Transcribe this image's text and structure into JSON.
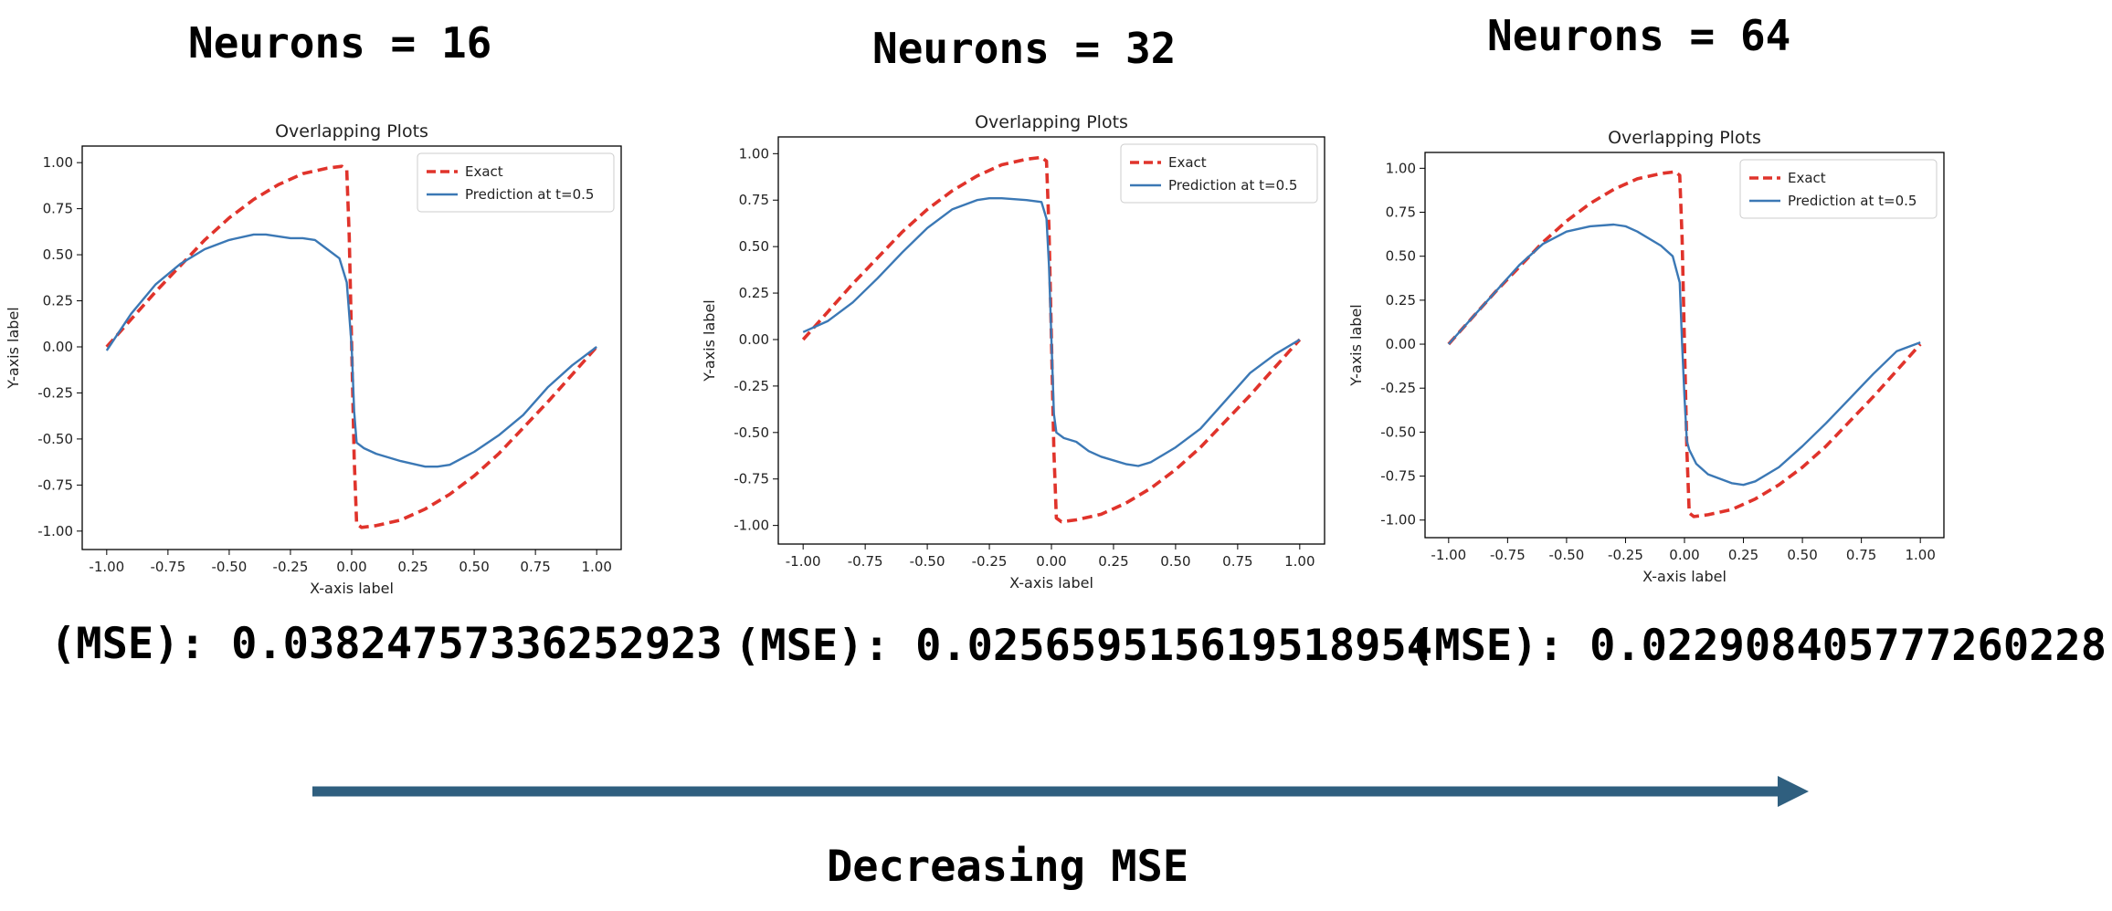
{
  "panels": [
    {
      "heading": "Neurons = 16",
      "mse_text": "(MSE): 0.0382475733625292​3",
      "chart_data": {
        "type": "line",
        "title": "Overlapping Plots",
        "xlabel": "X-axis label",
        "ylabel": "Y-axis label",
        "xlim": [
          -1.1,
          1.1
        ],
        "ylim": [
          -1.1,
          1.09
        ],
        "x_ticks": [
          "-1.00",
          "-0.75",
          "-0.50",
          "-0.25",
          "0.00",
          "0.25",
          "0.50",
          "0.75",
          "1.00"
        ],
        "y_ticks": [
          "1.00",
          "0.75",
          "0.50",
          "0.25",
          "0.00",
          "-0.25",
          "-0.50",
          "-0.75",
          "-1.00"
        ],
        "legend": "top-right",
        "grid": false,
        "series": [
          {
            "name": "Exact",
            "color": "#e0332b",
            "style": "dashed",
            "x": [
              -1.0,
              -0.9,
              -0.8,
              -0.7,
              -0.6,
              -0.5,
              -0.4,
              -0.3,
              -0.2,
              -0.1,
              -0.04,
              -0.02,
              -0.01,
              0.0,
              0.01,
              0.02,
              0.04,
              0.1,
              0.2,
              0.3,
              0.4,
              0.5,
              0.6,
              0.7,
              0.8,
              0.9,
              1.0
            ],
            "y": [
              0.0,
              0.15,
              0.3,
              0.44,
              0.58,
              0.7,
              0.8,
              0.88,
              0.94,
              0.97,
              0.98,
              0.96,
              0.6,
              0.0,
              -0.6,
              -0.96,
              -0.98,
              -0.97,
              -0.94,
              -0.88,
              -0.8,
              -0.7,
              -0.58,
              -0.44,
              -0.3,
              -0.15,
              0.0
            ]
          },
          {
            "name": "Prediction at t=0.5",
            "color": "#3b78b5",
            "style": "solid",
            "x": [
              -1.0,
              -0.9,
              -0.8,
              -0.7,
              -0.6,
              -0.5,
              -0.4,
              -0.35,
              -0.3,
              -0.25,
              -0.2,
              -0.15,
              -0.1,
              -0.05,
              -0.02,
              0.0,
              0.01,
              0.02,
              0.05,
              0.1,
              0.2,
              0.3,
              0.35,
              0.4,
              0.5,
              0.6,
              0.7,
              0.8,
              0.9,
              1.0
            ],
            "y": [
              -0.02,
              0.18,
              0.34,
              0.45,
              0.53,
              0.58,
              0.61,
              0.61,
              0.6,
              0.59,
              0.59,
              0.58,
              0.53,
              0.48,
              0.35,
              0.0,
              -0.35,
              -0.52,
              -0.55,
              -0.58,
              -0.62,
              -0.65,
              -0.65,
              -0.64,
              -0.57,
              -0.48,
              -0.37,
              -0.22,
              -0.1,
              0.0
            ]
          }
        ]
      }
    },
    {
      "heading": "Neurons = 32",
      "mse_text": "(MSE): 0.025659515619518954",
      "chart_data": {
        "type": "line",
        "title": "Overlapping Plots",
        "xlabel": "X-axis label",
        "ylabel": "Y-axis label",
        "xlim": [
          -1.1,
          1.1
        ],
        "ylim": [
          -1.1,
          1.09
        ],
        "x_ticks": [
          "-1.00",
          "-0.75",
          "-0.50",
          "-0.25",
          "0.00",
          "0.25",
          "0.50",
          "0.75",
          "1.00"
        ],
        "y_ticks": [
          "1.00",
          "0.75",
          "0.50",
          "0.25",
          "0.00",
          "-0.25",
          "-0.50",
          "-0.75",
          "-1.00"
        ],
        "legend": "top-right",
        "grid": false,
        "series": [
          {
            "name": "Exact",
            "color": "#e0332b",
            "style": "dashed",
            "x": [
              -1.0,
              -0.9,
              -0.8,
              -0.7,
              -0.6,
              -0.5,
              -0.4,
              -0.3,
              -0.2,
              -0.1,
              -0.04,
              -0.02,
              -0.01,
              0.0,
              0.01,
              0.02,
              0.04,
              0.1,
              0.2,
              0.3,
              0.4,
              0.5,
              0.6,
              0.7,
              0.8,
              0.9,
              1.0
            ],
            "y": [
              0.0,
              0.15,
              0.3,
              0.44,
              0.58,
              0.7,
              0.8,
              0.88,
              0.94,
              0.97,
              0.98,
              0.96,
              0.6,
              0.0,
              -0.6,
              -0.96,
              -0.98,
              -0.97,
              -0.94,
              -0.88,
              -0.8,
              -0.7,
              -0.58,
              -0.44,
              -0.3,
              -0.15,
              0.0
            ]
          },
          {
            "name": "Prediction at t=0.5",
            "color": "#3b78b5",
            "style": "solid",
            "x": [
              -1.0,
              -0.9,
              -0.8,
              -0.7,
              -0.6,
              -0.5,
              -0.4,
              -0.3,
              -0.25,
              -0.2,
              -0.1,
              -0.04,
              -0.02,
              -0.01,
              0.0,
              0.01,
              0.02,
              0.05,
              0.1,
              0.15,
              0.2,
              0.3,
              0.35,
              0.4,
              0.5,
              0.6,
              0.7,
              0.8,
              0.9,
              1.0
            ],
            "y": [
              0.04,
              0.1,
              0.2,
              0.33,
              0.47,
              0.6,
              0.7,
              0.75,
              0.76,
              0.76,
              0.75,
              0.74,
              0.65,
              0.4,
              0.0,
              -0.4,
              -0.5,
              -0.53,
              -0.55,
              -0.6,
              -0.63,
              -0.67,
              -0.68,
              -0.66,
              -0.58,
              -0.48,
              -0.33,
              -0.18,
              -0.08,
              0.0
            ]
          }
        ]
      }
    },
    {
      "heading": "Neurons = 64",
      "mse_text": "(MSE): 0.022908405777260228",
      "chart_data": {
        "type": "line",
        "title": "Overlapping Plots",
        "xlabel": "X-axis label",
        "ylabel": "Y-axis label",
        "xlim": [
          -1.1,
          1.1
        ],
        "ylim": [
          -1.1,
          1.09
        ],
        "x_ticks": [
          "-1.00",
          "-0.75",
          "-0.50",
          "-0.25",
          "0.00",
          "0.25",
          "0.50",
          "0.75",
          "1.00"
        ],
        "y_ticks": [
          "1.00",
          "0.75",
          "0.50",
          "0.25",
          "0.00",
          "-0.25",
          "-0.50",
          "-0.75",
          "-1.00"
        ],
        "legend": "top-right",
        "grid": false,
        "series": [
          {
            "name": "Exact",
            "color": "#e0332b",
            "style": "dashed",
            "x": [
              -1.0,
              -0.9,
              -0.8,
              -0.7,
              -0.6,
              -0.5,
              -0.4,
              -0.3,
              -0.2,
              -0.1,
              -0.04,
              -0.02,
              -0.01,
              0.0,
              0.01,
              0.02,
              0.04,
              0.1,
              0.2,
              0.3,
              0.4,
              0.5,
              0.6,
              0.7,
              0.8,
              0.9,
              1.0
            ],
            "y": [
              0.0,
              0.15,
              0.3,
              0.44,
              0.58,
              0.7,
              0.8,
              0.88,
              0.94,
              0.97,
              0.98,
              0.96,
              0.6,
              0.0,
              -0.6,
              -0.96,
              -0.98,
              -0.97,
              -0.94,
              -0.88,
              -0.8,
              -0.7,
              -0.58,
              -0.44,
              -0.3,
              -0.15,
              0.0
            ]
          },
          {
            "name": "Prediction at t=0.5",
            "color": "#3b78b5",
            "style": "solid",
            "x": [
              -1.0,
              -0.9,
              -0.8,
              -0.7,
              -0.6,
              -0.5,
              -0.4,
              -0.3,
              -0.25,
              -0.2,
              -0.1,
              -0.05,
              -0.02,
              -0.01,
              0.0,
              0.01,
              0.02,
              0.05,
              0.1,
              0.2,
              0.25,
              0.3,
              0.4,
              0.5,
              0.6,
              0.7,
              0.8,
              0.9,
              1.0
            ],
            "y": [
              0.0,
              0.15,
              0.3,
              0.45,
              0.57,
              0.64,
              0.67,
              0.68,
              0.67,
              0.64,
              0.56,
              0.5,
              0.35,
              0.0,
              -0.3,
              -0.55,
              -0.6,
              -0.68,
              -0.74,
              -0.79,
              -0.8,
              -0.78,
              -0.7,
              -0.58,
              -0.45,
              -0.31,
              -0.17,
              -0.04,
              0.01
            ]
          }
        ]
      }
    }
  ],
  "footer": {
    "label": "Decreasing MSE",
    "arrow_color": "#2f5f7f"
  }
}
